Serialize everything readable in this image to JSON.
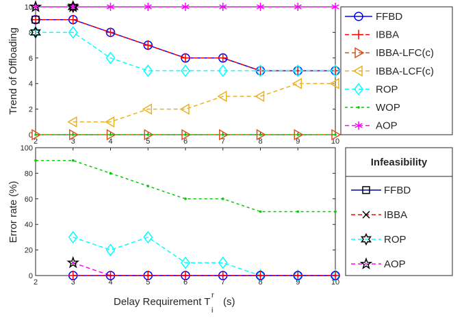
{
  "xlabel": "Delay Requirement T",
  "xlabel_sup": "r",
  "xlabel_sub": "i",
  "xlabel_unit": "(s)",
  "chart_data": [
    {
      "type": "line",
      "ylabel": "Trend of Offloading",
      "xlim": [
        2,
        10
      ],
      "ylim": [
        0,
        10
      ],
      "grid": false,
      "legend_placement": "right",
      "xticks": [
        "2",
        "3",
        "4",
        "5",
        "6",
        "7",
        "8",
        "9",
        "10"
      ],
      "yticks": [
        "0",
        "2",
        "4",
        "6",
        "8",
        "10"
      ],
      "series": [
        {
          "name": "FFBD",
          "marker": "circle",
          "dash": "",
          "color": "#0000ff",
          "x": [
            2,
            3,
            4,
            5,
            6,
            7,
            8,
            9,
            10
          ],
          "y": [
            9,
            9,
            8,
            7,
            6,
            6,
            5,
            5,
            5
          ]
        },
        {
          "name": "IBBA",
          "marker": "plus",
          "dash": "6,4",
          "color": "#ff0000",
          "x": [
            2,
            3,
            4,
            5,
            6,
            7,
            8,
            9,
            10
          ],
          "y": [
            9,
            9,
            8,
            7,
            6,
            6,
            5,
            5,
            5
          ]
        },
        {
          "name": "IBBA-LFC(c)",
          "marker": "triangle-right",
          "dash": "6,4",
          "color": "#d95319",
          "x": [
            2,
            3,
            4,
            5,
            6,
            7,
            8,
            9,
            10
          ],
          "y": [
            0,
            0,
            0,
            0,
            0,
            0,
            0,
            0,
            0
          ]
        },
        {
          "name": "IBBA-LCF(c)",
          "marker": "triangle-left",
          "dash": "6,4",
          "color": "#edb120",
          "x": [
            3,
            4,
            5,
            6,
            7,
            8,
            9,
            10
          ],
          "y": [
            1,
            1,
            2,
            2,
            3,
            3,
            4,
            4
          ]
        },
        {
          "name": "ROP",
          "marker": "diamond",
          "dash": "6,4",
          "color": "#00ffff",
          "x": [
            2,
            3,
            4,
            5,
            6,
            7,
            8,
            9,
            10
          ],
          "y": [
            8,
            8,
            6,
            5,
            5,
            5,
            5,
            5,
            5
          ]
        },
        {
          "name": "WOP",
          "marker": "dot",
          "dash": "4,4",
          "color": "#00cc00",
          "x": [
            2,
            3,
            4,
            5,
            6,
            7,
            8,
            9,
            10
          ],
          "y": [
            0,
            0,
            0,
            0,
            0,
            0,
            0,
            0,
            0
          ]
        },
        {
          "name": "AOP",
          "marker": "asterisk",
          "dash": "6,4",
          "color": "#ff00ff",
          "x": [
            2,
            3,
            4,
            5,
            6,
            7,
            8,
            9,
            10
          ],
          "y": [
            10,
            10,
            10,
            10,
            10,
            10,
            10,
            10,
            10
          ]
        }
      ],
      "extra_markers": [
        {
          "marker": "square",
          "color": "#000000",
          "x": [
            2
          ],
          "y": [
            9
          ]
        },
        {
          "marker": "hexagram",
          "color": "#000000",
          "x": [
            2,
            3
          ],
          "y": [
            8,
            10
          ]
        },
        {
          "marker": "pentagram",
          "color": "#000000",
          "x": [
            2,
            3
          ],
          "y": [
            10,
            10
          ]
        }
      ]
    },
    {
      "type": "line",
      "ylabel": "Error rate (%)",
      "xlim": [
        2,
        10
      ],
      "ylim": [
        0,
        100
      ],
      "grid": false,
      "legend_placement": "right",
      "legend_title": "Infeasibility",
      "xticks": [
        "2",
        "3",
        "4",
        "5",
        "6",
        "7",
        "8",
        "9",
        "10"
      ],
      "yticks": [
        "0",
        "20",
        "40",
        "60",
        "80",
        "100"
      ],
      "series": [
        {
          "name": "WOP",
          "marker": "dot",
          "dash": "4,4",
          "color": "#00cc00",
          "in_legend": false,
          "x": [
            2,
            3,
            4,
            5,
            6,
            7,
            8,
            9,
            10
          ],
          "y": [
            90,
            90,
            80,
            70,
            60,
            60,
            50,
            50,
            50
          ]
        },
        {
          "name": "ROP",
          "marker": "diamond",
          "dash": "6,4",
          "color": "#00ffff",
          "in_legend": false,
          "x": [
            3,
            4,
            5,
            6,
            7,
            8,
            9,
            10
          ],
          "y": [
            30,
            20,
            30,
            10,
            10,
            0,
            0,
            0
          ]
        },
        {
          "name": "AOP",
          "marker": "dot",
          "dash": "6,4",
          "color": "#ff00ff",
          "in_legend": false,
          "x": [
            3,
            4,
            5,
            6,
            7,
            8,
            9,
            10
          ],
          "y": [
            10,
            0,
            0,
            0,
            0,
            0,
            0,
            0
          ]
        },
        {
          "name": "FFBD",
          "marker": "circle",
          "dash": "",
          "color": "#0000ff",
          "in_legend": false,
          "x": [
            3,
            4,
            5,
            6,
            7,
            8,
            9,
            10
          ],
          "y": [
            0,
            0,
            0,
            0,
            0,
            0,
            0,
            0
          ]
        },
        {
          "name": "IBBA",
          "marker": "plus",
          "dash": "6,4",
          "color": "#ff0000",
          "in_legend": false,
          "x": [
            3,
            4,
            5,
            6,
            7,
            8,
            9,
            10
          ],
          "y": [
            0,
            0,
            0,
            0,
            0,
            0,
            0,
            0
          ]
        }
      ],
      "extra_markers": [
        {
          "marker": "pentagram",
          "color": "#000000",
          "x": [
            3
          ],
          "y": [
            10
          ]
        }
      ],
      "legend_entries": [
        {
          "name": "FFBD",
          "marker": "square",
          "line_color": "#0000aa",
          "marker_color": "#000000",
          "dash": ""
        },
        {
          "name": "IBBA",
          "marker": "cross",
          "line_color": "#ff0000",
          "marker_color": "#000000",
          "dash": "6,4"
        },
        {
          "name": "ROP",
          "marker": "hexagram",
          "line_color": "#00ffff",
          "marker_color": "#000000",
          "dash": "6,4"
        },
        {
          "name": "AOP",
          "marker": "pentagram",
          "line_color": "#ff00ff",
          "marker_color": "#000000",
          "dash": "6,4"
        }
      ]
    }
  ]
}
